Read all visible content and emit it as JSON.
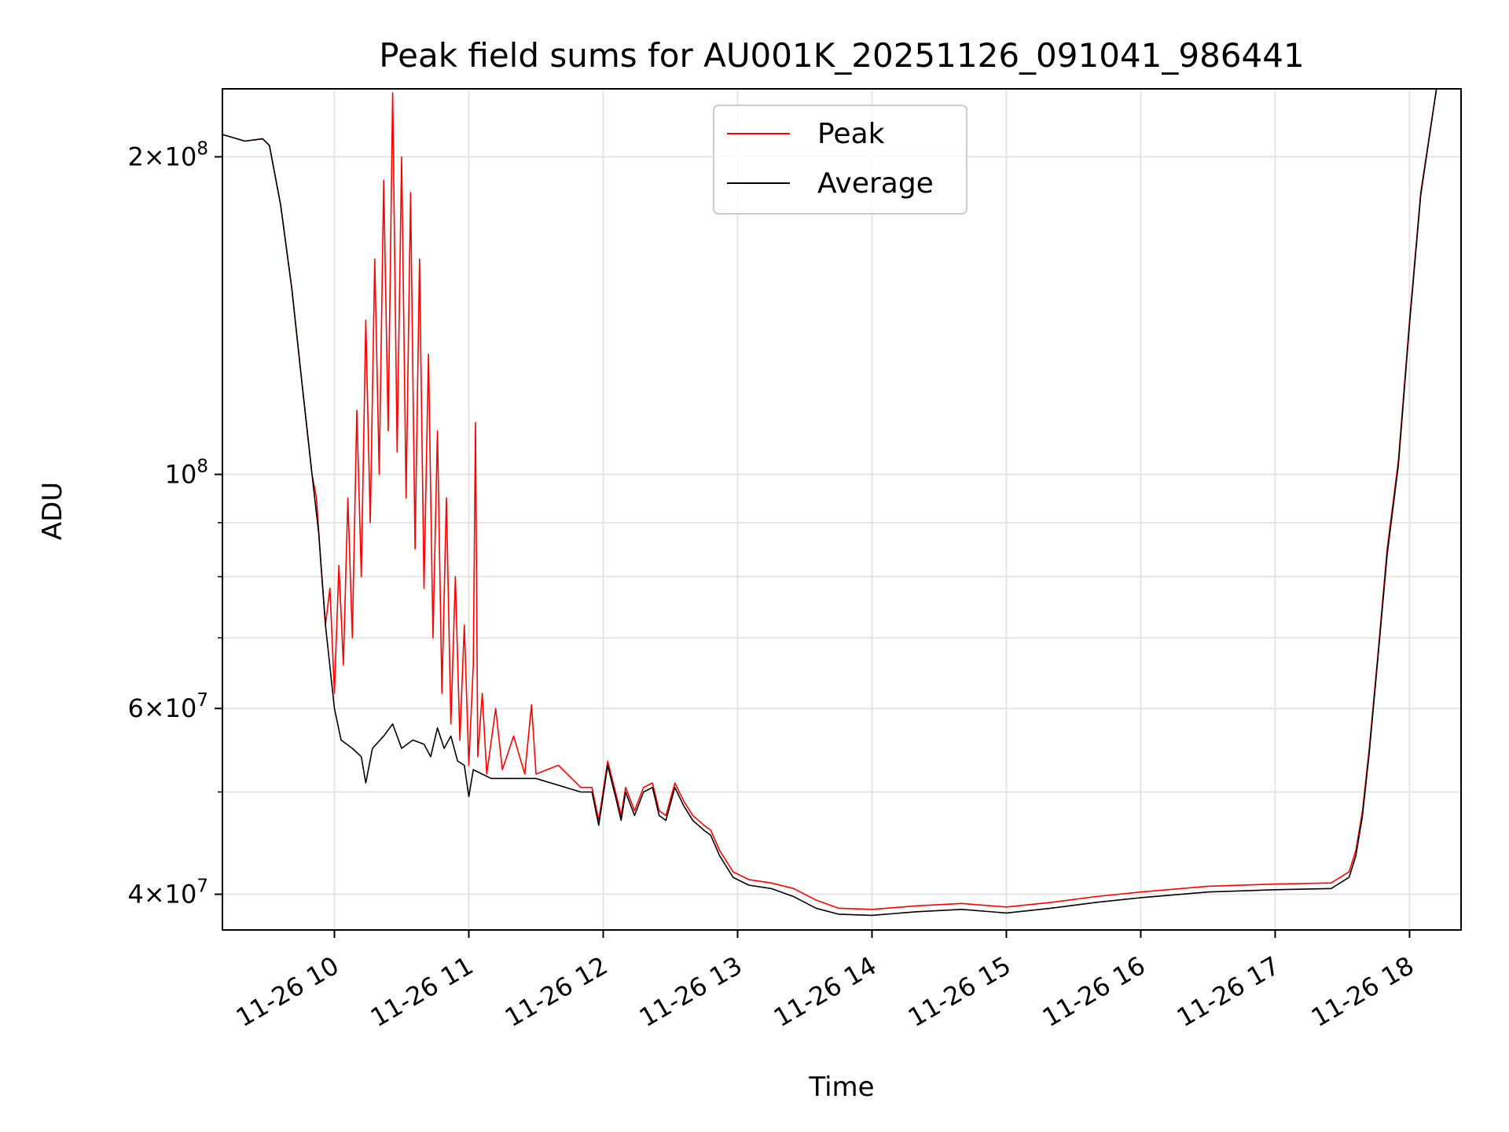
{
  "chart_data": {
    "type": "line",
    "title": "Peak field sums for AU001K_20251126_091041_986441",
    "xlabel": "Time",
    "ylabel": "ADU",
    "yscale": "log",
    "xlim": [
      "2025-11-26 09:10",
      "2025-11-26 18:23"
    ],
    "ylim": [
      37000000,
      232000000
    ],
    "grid": true,
    "legend_position": "top-center",
    "x_tick_labels": [
      "11-26 10",
      "11-26 11",
      "11-26 12",
      "11-26 13",
      "11-26 14",
      "11-26 15",
      "11-26 16",
      "11-26 17",
      "11-26 18"
    ],
    "x_tick_values": [
      "2025-11-26 10:00",
      "2025-11-26 11:00",
      "2025-11-26 12:00",
      "2025-11-26 13:00",
      "2025-11-26 14:00",
      "2025-11-26 15:00",
      "2025-11-26 16:00",
      "2025-11-26 17:00",
      "2025-11-26 18:00"
    ],
    "y_tick_labels": [
      {
        "value": 40000000,
        "mant": "4",
        "exp": "7"
      },
      {
        "value": 60000000,
        "mant": "6",
        "exp": "7"
      },
      {
        "value": 100000000,
        "mant": "",
        "exp": "8"
      },
      {
        "value": 200000000,
        "mant": "2",
        "exp": "8"
      }
    ],
    "y_minor_ticks": [
      50000000,
      70000000,
      80000000,
      90000000
    ],
    "series": [
      {
        "name": "Peak",
        "color": "#ff0000",
        "points": [
          [
            "2025-11-26 09:10",
            210000000
          ],
          [
            "2025-11-26 09:20",
            207000000
          ],
          [
            "2025-11-26 09:28",
            208000000
          ],
          [
            "2025-11-26 09:31",
            205000000
          ],
          [
            "2025-11-26 09:36",
            180000000
          ],
          [
            "2025-11-26 09:41",
            150000000
          ],
          [
            "2025-11-26 09:45",
            125000000
          ],
          [
            "2025-11-26 09:50",
            100000000
          ],
          [
            "2025-11-26 09:52",
            95000000
          ],
          [
            "2025-11-26 09:54",
            82000000
          ],
          [
            "2025-11-26 09:56",
            72000000
          ],
          [
            "2025-11-26 09:58",
            78000000
          ],
          [
            "2025-11-26 10:00",
            62000000
          ],
          [
            "2025-11-26 10:02",
            82000000
          ],
          [
            "2025-11-26 10:04",
            66000000
          ],
          [
            "2025-11-26 10:06",
            95000000
          ],
          [
            "2025-11-26 10:08",
            70000000
          ],
          [
            "2025-11-26 10:10",
            115000000
          ],
          [
            "2025-11-26 10:12",
            80000000
          ],
          [
            "2025-11-26 10:14",
            140000000
          ],
          [
            "2025-11-26 10:16",
            90000000
          ],
          [
            "2025-11-26 10:18",
            160000000
          ],
          [
            "2025-11-26 10:20",
            100000000
          ],
          [
            "2025-11-26 10:22",
            190000000
          ],
          [
            "2025-11-26 10:24",
            110000000
          ],
          [
            "2025-11-26 10:26",
            230000000
          ],
          [
            "2025-11-26 10:28",
            105000000
          ],
          [
            "2025-11-26 10:30",
            200000000
          ],
          [
            "2025-11-26 10:32",
            95000000
          ],
          [
            "2025-11-26 10:34",
            185000000
          ],
          [
            "2025-11-26 10:36",
            85000000
          ],
          [
            "2025-11-26 10:38",
            160000000
          ],
          [
            "2025-11-26 10:40",
            78000000
          ],
          [
            "2025-11-26 10:42",
            130000000
          ],
          [
            "2025-11-26 10:44",
            70000000
          ],
          [
            "2025-11-26 10:46",
            110000000
          ],
          [
            "2025-11-26 10:48",
            62000000
          ],
          [
            "2025-11-26 10:50",
            95000000
          ],
          [
            "2025-11-26 10:52",
            58000000
          ],
          [
            "2025-11-26 10:54",
            80000000
          ],
          [
            "2025-11-26 10:56",
            56000000
          ],
          [
            "2025-11-26 10:58",
            72000000
          ],
          [
            "2025-11-26 11:00",
            53000000
          ],
          [
            "2025-11-26 11:02",
            66000000
          ],
          [
            "2025-11-26 11:03",
            112000000
          ],
          [
            "2025-11-26 11:04",
            54000000
          ],
          [
            "2025-11-26 11:06",
            62000000
          ],
          [
            "2025-11-26 11:08",
            52000000
          ],
          [
            "2025-11-26 11:12",
            60000000
          ],
          [
            "2025-11-26 11:15",
            52500000
          ],
          [
            "2025-11-26 11:20",
            56500000
          ],
          [
            "2025-11-26 11:25",
            52000000
          ],
          [
            "2025-11-26 11:28",
            60500000
          ],
          [
            "2025-11-26 11:30",
            52000000
          ],
          [
            "2025-11-26 11:40",
            53000000
          ],
          [
            "2025-11-26 11:50",
            50500000
          ],
          [
            "2025-11-26 11:55",
            50500000
          ],
          [
            "2025-11-26 11:58",
            47000000
          ],
          [
            "2025-11-26 12:02",
            53500000
          ],
          [
            "2025-11-26 12:06",
            49500000
          ],
          [
            "2025-11-26 12:08",
            47500000
          ],
          [
            "2025-11-26 12:10",
            50500000
          ],
          [
            "2025-11-26 12:14",
            48000000
          ],
          [
            "2025-11-26 12:18",
            50500000
          ],
          [
            "2025-11-26 12:22",
            51000000
          ],
          [
            "2025-11-26 12:25",
            48000000
          ],
          [
            "2025-11-26 12:28",
            47500000
          ],
          [
            "2025-11-26 12:32",
            51000000
          ],
          [
            "2025-11-26 12:36",
            49000000
          ],
          [
            "2025-11-26 12:40",
            47500000
          ],
          [
            "2025-11-26 12:45",
            46500000
          ],
          [
            "2025-11-26 12:48",
            46000000
          ],
          [
            "2025-11-26 12:52",
            44000000
          ],
          [
            "2025-11-26 12:58",
            42000000
          ],
          [
            "2025-11-26 13:05",
            41300000
          ],
          [
            "2025-11-26 13:15",
            41000000
          ],
          [
            "2025-11-26 13:25",
            40500000
          ],
          [
            "2025-11-26 13:35",
            39500000
          ],
          [
            "2025-11-26 13:45",
            38800000
          ],
          [
            "2025-11-26 14:00",
            38700000
          ],
          [
            "2025-11-26 14:20",
            39000000
          ],
          [
            "2025-11-26 14:40",
            39200000
          ],
          [
            "2025-11-26 15:00",
            38900000
          ],
          [
            "2025-11-26 15:20",
            39300000
          ],
          [
            "2025-11-26 15:40",
            39800000
          ],
          [
            "2025-11-26 16:00",
            40200000
          ],
          [
            "2025-11-26 16:30",
            40700000
          ],
          [
            "2025-11-26 17:00",
            40900000
          ],
          [
            "2025-11-26 17:25",
            41000000
          ],
          [
            "2025-11-26 17:33",
            42000000
          ],
          [
            "2025-11-26 17:36",
            44000000
          ],
          [
            "2025-11-26 17:39",
            48000000
          ],
          [
            "2025-11-26 17:42",
            55000000
          ],
          [
            "2025-11-26 17:46",
            68000000
          ],
          [
            "2025-11-26 17:50",
            85000000
          ],
          [
            "2025-11-26 17:55",
            103000000
          ],
          [
            "2025-11-26 18:00",
            140000000
          ],
          [
            "2025-11-26 18:05",
            185000000
          ],
          [
            "2025-11-26 18:12",
            232000000
          ]
        ]
      },
      {
        "name": "Average",
        "color": "#000000",
        "points": [
          [
            "2025-11-26 09:10",
            210000000
          ],
          [
            "2025-11-26 09:20",
            207000000
          ],
          [
            "2025-11-26 09:28",
            208000000
          ],
          [
            "2025-11-26 09:31",
            205000000
          ],
          [
            "2025-11-26 09:36",
            180000000
          ],
          [
            "2025-11-26 09:41",
            150000000
          ],
          [
            "2025-11-26 09:45",
            125000000
          ],
          [
            "2025-11-26 09:50",
            100000000
          ],
          [
            "2025-11-26 09:53",
            88000000
          ],
          [
            "2025-11-26 09:56",
            72000000
          ],
          [
            "2025-11-26 10:00",
            60000000
          ],
          [
            "2025-11-26 10:03",
            56000000
          ],
          [
            "2025-11-26 10:08",
            55000000
          ],
          [
            "2025-11-26 10:12",
            54000000
          ],
          [
            "2025-11-26 10:14",
            51000000
          ],
          [
            "2025-11-26 10:17",
            55000000
          ],
          [
            "2025-11-26 10:22",
            56500000
          ],
          [
            "2025-11-26 10:26",
            58000000
          ],
          [
            "2025-11-26 10:30",
            55000000
          ],
          [
            "2025-11-26 10:35",
            56000000
          ],
          [
            "2025-11-26 10:40",
            55500000
          ],
          [
            "2025-11-26 10:43",
            54000000
          ],
          [
            "2025-11-26 10:46",
            57500000
          ],
          [
            "2025-11-26 10:49",
            55000000
          ],
          [
            "2025-11-26 10:52",
            56500000
          ],
          [
            "2025-11-26 10:55",
            53500000
          ],
          [
            "2025-11-26 10:58",
            53000000
          ],
          [
            "2025-11-26 11:00",
            49500000
          ],
          [
            "2025-11-26 11:02",
            52500000
          ],
          [
            "2025-11-26 11:10",
            51500000
          ],
          [
            "2025-11-26 11:30",
            51500000
          ],
          [
            "2025-11-26 11:50",
            50000000
          ],
          [
            "2025-11-26 11:55",
            50000000
          ],
          [
            "2025-11-26 11:58",
            46500000
          ],
          [
            "2025-11-26 12:02",
            53000000
          ],
          [
            "2025-11-26 12:06",
            49000000
          ],
          [
            "2025-11-26 12:08",
            47000000
          ],
          [
            "2025-11-26 12:10",
            50000000
          ],
          [
            "2025-11-26 12:14",
            47500000
          ],
          [
            "2025-11-26 12:18",
            50000000
          ],
          [
            "2025-11-26 12:22",
            50500000
          ],
          [
            "2025-11-26 12:25",
            47500000
          ],
          [
            "2025-11-26 12:28",
            47000000
          ],
          [
            "2025-11-26 12:32",
            50500000
          ],
          [
            "2025-11-26 12:36",
            48500000
          ],
          [
            "2025-11-26 12:40",
            47000000
          ],
          [
            "2025-11-26 12:45",
            46000000
          ],
          [
            "2025-11-26 12:48",
            45500000
          ],
          [
            "2025-11-26 12:52",
            43500000
          ],
          [
            "2025-11-26 12:58",
            41500000
          ],
          [
            "2025-11-26 13:05",
            40800000
          ],
          [
            "2025-11-26 13:15",
            40500000
          ],
          [
            "2025-11-26 13:25",
            39800000
          ],
          [
            "2025-11-26 13:35",
            38800000
          ],
          [
            "2025-11-26 13:45",
            38300000
          ],
          [
            "2025-11-26 14:00",
            38200000
          ],
          [
            "2025-11-26 14:20",
            38500000
          ],
          [
            "2025-11-26 14:40",
            38700000
          ],
          [
            "2025-11-26 15:00",
            38400000
          ],
          [
            "2025-11-26 15:20",
            38800000
          ],
          [
            "2025-11-26 15:40",
            39300000
          ],
          [
            "2025-11-26 16:00",
            39700000
          ],
          [
            "2025-11-26 16:30",
            40200000
          ],
          [
            "2025-11-26 17:00",
            40400000
          ],
          [
            "2025-11-26 17:25",
            40500000
          ],
          [
            "2025-11-26 17:33",
            41500000
          ],
          [
            "2025-11-26 17:36",
            43500000
          ],
          [
            "2025-11-26 17:39",
            47500000
          ],
          [
            "2025-11-26 17:42",
            54500000
          ],
          [
            "2025-11-26 17:46",
            67500000
          ],
          [
            "2025-11-26 17:50",
            84000000
          ],
          [
            "2025-11-26 17:55",
            102000000
          ],
          [
            "2025-11-26 18:00",
            139000000
          ],
          [
            "2025-11-26 18:05",
            184000000
          ],
          [
            "2025-11-26 18:12",
            232000000
          ]
        ]
      }
    ]
  }
}
